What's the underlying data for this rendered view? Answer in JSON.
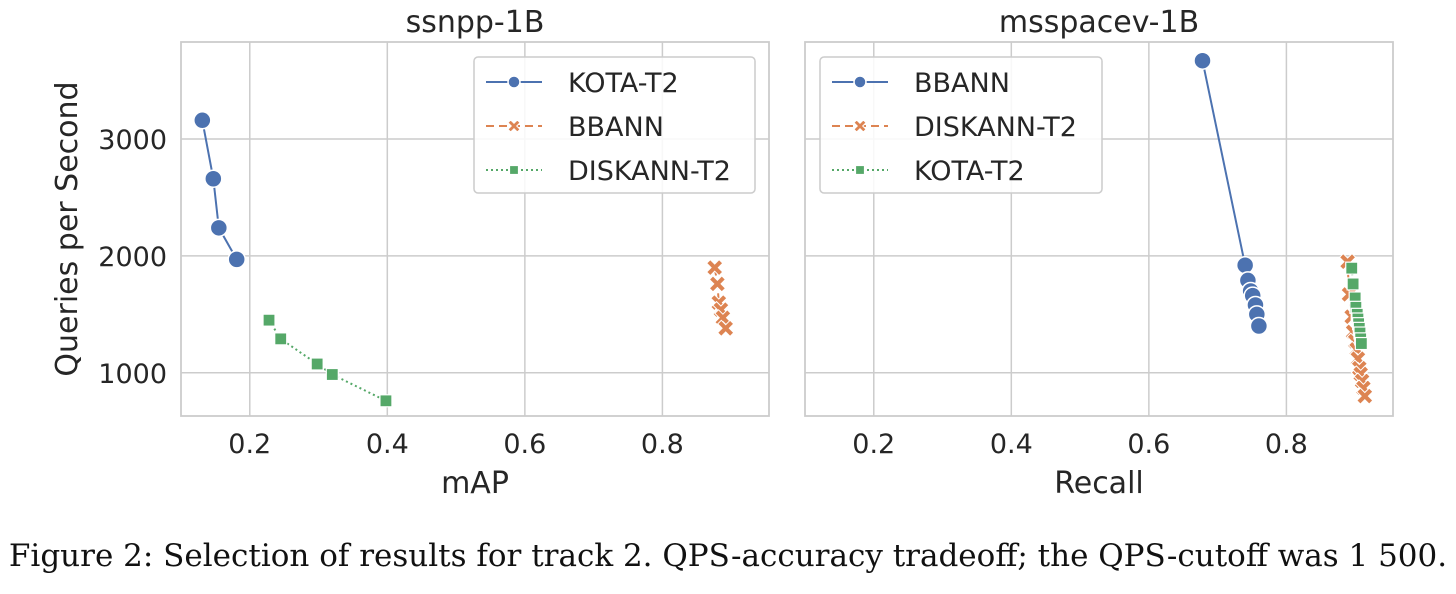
{
  "figure_caption": "Figure 2: Selection of results for track 2. QPS-accuracy tradeoff; the QPS-cutoff was 1 500.",
  "shared_ylabel": "Queries per Second",
  "colors": {
    "blue": "#4c72b0",
    "orange": "#dd8452",
    "green": "#55a868",
    "grid": "#cccccc"
  },
  "chart_data": [
    {
      "type": "line",
      "title": "ssnpp-1B",
      "xlabel": "mAP",
      "ylabel": "Queries per Second",
      "xlim": [
        0.1,
        0.955
      ],
      "ylim": [
        630,
        3830
      ],
      "xticks": [
        0.2,
        0.4,
        0.6,
        0.8
      ],
      "xtick_labels": [
        "0.2",
        "0.4",
        "0.6",
        "0.8"
      ],
      "yticks": [
        1000,
        2000,
        3000
      ],
      "ytick_labels": [
        "1000",
        "2000",
        "3000"
      ],
      "grid": true,
      "legend_position": "top-right",
      "series": [
        {
          "name": "KOTA-T2",
          "color": "#4c72b0",
          "marker": "circle",
          "linestyle": "solid",
          "x": [
            0.131,
            0.147,
            0.155,
            0.181
          ],
          "y": [
            3160,
            2660,
            2240,
            1970
          ]
        },
        {
          "name": "BBANN",
          "color": "#dd8452",
          "marker": "x",
          "linestyle": "dashed",
          "x": [
            0.876,
            0.88,
            0.882,
            0.885,
            0.888,
            0.892
          ],
          "y": [
            1900,
            1760,
            1600,
            1540,
            1470,
            1380
          ]
        },
        {
          "name": "DISKANN-T2",
          "color": "#55a868",
          "marker": "square",
          "linestyle": "dotted",
          "x": [
            0.228,
            0.245,
            0.298,
            0.32,
            0.398
          ],
          "y": [
            1450,
            1290,
            1075,
            985,
            760
          ]
        }
      ]
    },
    {
      "type": "line",
      "title": "msspacev-1B",
      "xlabel": "Recall",
      "ylabel": "",
      "xlim": [
        0.1,
        0.955
      ],
      "ylim": [
        630,
        3830
      ],
      "xticks": [
        0.2,
        0.4,
        0.6,
        0.8
      ],
      "xtick_labels": [
        "0.2",
        "0.4",
        "0.6",
        "0.8"
      ],
      "yticks": [
        1000,
        2000,
        3000
      ],
      "ytick_labels": [],
      "grid": true,
      "legend_position": "top-left",
      "series": [
        {
          "name": "BBANN",
          "color": "#4c72b0",
          "marker": "circle",
          "linestyle": "solid",
          "x": [
            0.678,
            0.74,
            0.744,
            0.748,
            0.751,
            0.755,
            0.757,
            0.76
          ],
          "y": [
            3670,
            1920,
            1790,
            1700,
            1660,
            1580,
            1500,
            1400
          ]
        },
        {
          "name": "DISKANN-T2",
          "color": "#dd8452",
          "marker": "x",
          "linestyle": "dashed",
          "x": [
            0.889,
            0.891,
            0.895,
            0.897,
            0.9,
            0.902,
            0.904,
            0.906,
            0.908,
            0.91,
            0.912,
            0.914
          ],
          "y": [
            1950,
            1670,
            1480,
            1350,
            1270,
            1200,
            1120,
            1040,
            990,
            930,
            870,
            800
          ]
        },
        {
          "name": "KOTA-T2",
          "color": "#55a868",
          "marker": "square",
          "linestyle": "dotted",
          "x": [
            0.895,
            0.897,
            0.9,
            0.901,
            0.903,
            0.904,
            0.905,
            0.906,
            0.907,
            0.908,
            0.909
          ],
          "y": [
            1895,
            1760,
            1640,
            1560,
            1500,
            1460,
            1420,
            1380,
            1340,
            1290,
            1250
          ]
        }
      ]
    }
  ]
}
